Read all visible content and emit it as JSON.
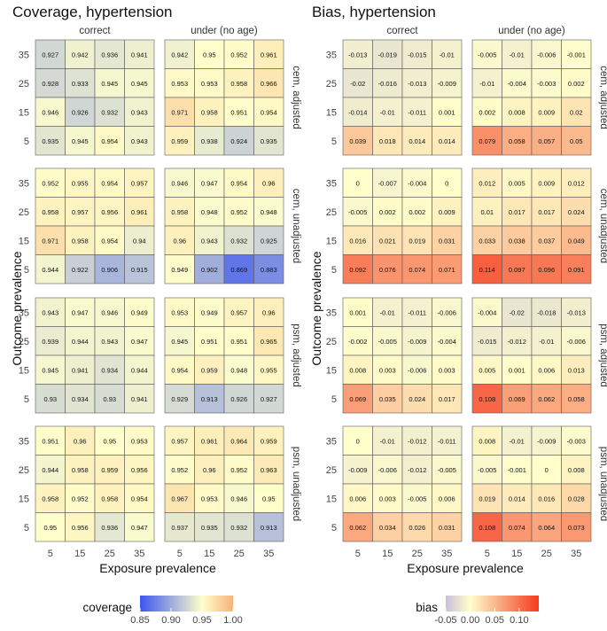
{
  "chart_data": [
    {
      "type": "heatmap",
      "title": "Coverage, hypertension",
      "xlabel": "Exposure prevalence",
      "ylabel": "Outcome prevalence",
      "x_categories": [
        "5",
        "15",
        "25",
        "35"
      ],
      "y_categories": [
        "35",
        "25",
        "15",
        "5"
      ],
      "column_facets": [
        "correct",
        "under (no age)"
      ],
      "row_facets": [
        "cem, adjusted",
        "cem, unadjusted",
        "psm, adjusted",
        "psm, unadjusted"
      ],
      "legend": {
        "title": "coverage",
        "range": [
          0.85,
          1.0
        ],
        "ticks": [
          "0.85",
          "0.90",
          "0.95",
          "1.00"
        ],
        "colors": {
          "low": "#3b56ee",
          "mid": "#ffffcc",
          "high": "#f8b27a"
        },
        "midpoint": 0.95
      },
      "panels": [
        {
          "row": "cem, adjusted",
          "col": "correct",
          "values": [
            [
              "0.927",
              "0.942",
              "0.936",
              "0.941"
            ],
            [
              "0.928",
              "0.933",
              "0.945",
              "0.945"
            ],
            [
              "0.946",
              "0.926",
              "0.932",
              "0.943"
            ],
            [
              "0.935",
              "0.945",
              "0.954",
              "0.943"
            ]
          ]
        },
        {
          "row": "cem, adjusted",
          "col": "under (no age)",
          "values": [
            [
              "0.942",
              "0.95",
              "0.952",
              "0.961"
            ],
            [
              "0.953",
              "0.953",
              "0.958",
              "0.966"
            ],
            [
              "0.971",
              "0.958",
              "0.951",
              "0.954"
            ],
            [
              "0.959",
              "0.938",
              "0.924",
              "0.935"
            ]
          ]
        },
        {
          "row": "cem, unadjusted",
          "col": "correct",
          "values": [
            [
              "0.952",
              "0.955",
              "0.954",
              "0.957"
            ],
            [
              "0.958",
              "0.957",
              "0.956",
              "0.961"
            ],
            [
              "0.971",
              "0.958",
              "0.954",
              "0.94"
            ],
            [
              "0.944",
              "0.922",
              "0.906",
              "0.915"
            ]
          ]
        },
        {
          "row": "cem, unadjusted",
          "col": "under (no age)",
          "values": [
            [
              "0.946",
              "0.947",
              "0.954",
              "0.96"
            ],
            [
              "0.958",
              "0.948",
              "0.952",
              "0.948"
            ],
            [
              "0.96",
              "0.943",
              "0.932",
              "0.925"
            ],
            [
              "0.949",
              "0.902",
              "0.869",
              "0.883"
            ]
          ]
        },
        {
          "row": "psm, adjusted",
          "col": "correct",
          "values": [
            [
              "0.943",
              "0.947",
              "0.946",
              "0.949"
            ],
            [
              "0.939",
              "0.944",
              "0.943",
              "0.947"
            ],
            [
              "0.945",
              "0.941",
              "0.934",
              "0.944"
            ],
            [
              "0.93",
              "0.934",
              "0.93",
              "0.941"
            ]
          ]
        },
        {
          "row": "psm, adjusted",
          "col": "under (no age)",
          "values": [
            [
              "0.953",
              "0.949",
              "0.957",
              "0.96"
            ],
            [
              "0.945",
              "0.951",
              "0.951",
              "0.965"
            ],
            [
              "0.954",
              "0.959",
              "0.948",
              "0.955"
            ],
            [
              "0.929",
              "0.913",
              "0.926",
              "0.927"
            ]
          ]
        },
        {
          "row": "psm, unadjusted",
          "col": "correct",
          "values": [
            [
              "0.951",
              "0.96",
              "0.95",
              "0.953"
            ],
            [
              "0.944",
              "0.958",
              "0.959",
              "0.956"
            ],
            [
              "0.958",
              "0.952",
              "0.958",
              "0.954"
            ],
            [
              "0.95",
              "0.956",
              "0.936",
              "0.947"
            ]
          ]
        },
        {
          "row": "psm, unadjusted",
          "col": "under (no age)",
          "values": [
            [
              "0.957",
              "0.961",
              "0.964",
              "0.959"
            ],
            [
              "0.952",
              "0.96",
              "0.952",
              "0.963"
            ],
            [
              "0.967",
              "0.953",
              "0.946",
              "0.95"
            ],
            [
              "0.937",
              "0.935",
              "0.932",
              "0.913"
            ]
          ]
        }
      ]
    },
    {
      "type": "heatmap",
      "title": "Bias, hypertension",
      "xlabel": "Exposure prevalence",
      "ylabel": "Outcome prevalence",
      "x_categories": [
        "5",
        "15",
        "25",
        "35"
      ],
      "y_categories": [
        "35",
        "25",
        "15",
        "5"
      ],
      "column_facets": [
        "correct",
        "under (no age)"
      ],
      "row_facets": [
        "cem, adjusted",
        "cem, unadjusted",
        "psm, adjusted",
        "psm, unadjusted"
      ],
      "legend": {
        "title": "bias",
        "range": [
          -0.05,
          0.14
        ],
        "ticks": [
          "-0.05",
          "0.00",
          "0.05",
          "0.10"
        ],
        "colors": {
          "low": "#c8c0d8",
          "mid": "#ffffcc",
          "high": "#f53a1f"
        },
        "midpoint": 0.0
      },
      "panels": [
        {
          "row": "cem, adjusted",
          "col": "correct",
          "values": [
            [
              "-0.013",
              "-0.019",
              "-0.015",
              "-0.01"
            ],
            [
              "-0.02",
              "-0.016",
              "-0.013",
              "-0.009"
            ],
            [
              "-0.014",
              "-0.01",
              "-0.011",
              "0.001"
            ],
            [
              "0.039",
              "0.018",
              "0.014",
              "0.014"
            ]
          ]
        },
        {
          "row": "cem, adjusted",
          "col": "under (no age)",
          "values": [
            [
              "-0.005",
              "-0.01",
              "-0.006",
              "-0.001"
            ],
            [
              "-0.01",
              "-0.004",
              "-0.003",
              "0.002"
            ],
            [
              "0.002",
              "0.008",
              "0.009",
              "0.02"
            ],
            [
              "0.079",
              "0.058",
              "0.057",
              "0.05"
            ]
          ]
        },
        {
          "row": "cem, unadjusted",
          "col": "correct",
          "values": [
            [
              "0",
              "-0.007",
              "-0.004",
              "0"
            ],
            [
              "-0.005",
              "0.002",
              "0.002",
              "0.009"
            ],
            [
              "0.016",
              "0.021",
              "0.019",
              "0.031"
            ],
            [
              "0.092",
              "0.076",
              "0.074",
              "0.071"
            ]
          ]
        },
        {
          "row": "cem, unadjusted",
          "col": "under (no age)",
          "values": [
            [
              "0.012",
              "0.005",
              "0.009",
              "0.012"
            ],
            [
              "0.01",
              "0.017",
              "0.017",
              "0.024"
            ],
            [
              "0.033",
              "0.038",
              "0.037",
              "0.049"
            ],
            [
              "0.114",
              "0.097",
              "0.096",
              "0.091"
            ]
          ]
        },
        {
          "row": "psm, adjusted",
          "col": "correct",
          "values": [
            [
              "0.001",
              "-0.01",
              "-0.011",
              "-0.006"
            ],
            [
              "-0.002",
              "-0.005",
              "-0.009",
              "-0.004"
            ],
            [
              "0.008",
              "0.003",
              "-0.006",
              "0.003"
            ],
            [
              "0.069",
              "0.035",
              "0.024",
              "0.017"
            ]
          ]
        },
        {
          "row": "psm, adjusted",
          "col": "under (no age)",
          "values": [
            [
              "-0.004",
              "-0.02",
              "-0.018",
              "-0.013"
            ],
            [
              "-0.015",
              "-0.012",
              "-0.01",
              "-0.006"
            ],
            [
              "0.005",
              "0.001",
              "0.006",
              "0.013"
            ],
            [
              "0.108",
              "0.069",
              "0.062",
              "0.058"
            ]
          ]
        },
        {
          "row": "psm, unadjusted",
          "col": "correct",
          "values": [
            [
              "0",
              "-0.01",
              "-0.012",
              "-0.011"
            ],
            [
              "-0.009",
              "-0.006",
              "-0.012",
              "-0.005"
            ],
            [
              "0.006",
              "0.003",
              "-0.005",
              "0.006"
            ],
            [
              "0.062",
              "0.034",
              "0.026",
              "0.031"
            ]
          ]
        },
        {
          "row": "psm, unadjusted",
          "col": "under (no age)",
          "values": [
            [
              "0.008",
              "-0.01",
              "-0.009",
              "-0.003"
            ],
            [
              "-0.005",
              "-0.001",
              "0",
              "0.008"
            ],
            [
              "0.019",
              "0.014",
              "0.016",
              "0.028"
            ],
            [
              "0.108",
              "0.074",
              "0.064",
              "0.073"
            ]
          ]
        }
      ]
    }
  ]
}
